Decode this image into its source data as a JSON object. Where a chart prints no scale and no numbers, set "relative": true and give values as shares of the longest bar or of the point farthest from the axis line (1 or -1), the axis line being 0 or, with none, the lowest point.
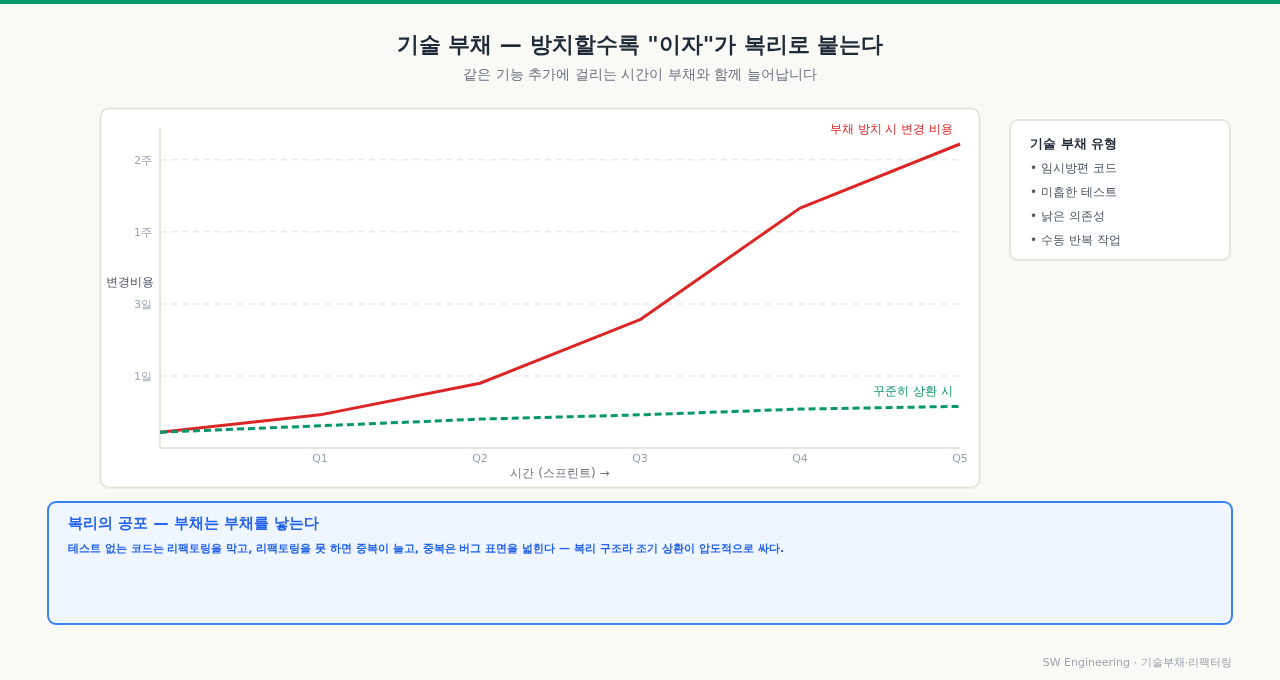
{
  "chart_data": [
    {
      "type": "line",
      "title": "기술 부채 — 방치할수록 \"이자\"가 복리로 붙는다",
      "subtitle": "같은 기능 추가에 걸리는 시간이 부채와 함께 늘어납니다",
      "xlabel": "시간 (스프린트) →",
      "ylabel": "변경비용",
      "categories": [
        null,
        "Q1",
        "Q2",
        "Q3",
        "Q4",
        "Q5"
      ],
      "series": [
        {
          "name": "부채 방치 시 변경 비용",
          "color": "#dc2626",
          "line_style": "solid",
          "values": [
            0.052,
            0.109,
            0.213,
            0.422,
            0.789,
            1
          ]
        },
        {
          "name": "꾸준히 상환 시",
          "color": "#059669",
          "line_style": "dashed",
          "values": [
            0.052,
            0.073,
            0.095,
            0.109,
            0.128,
            0.137
          ]
        }
      ],
      "relative": true,
      "ref_lines": [
        {
          "axis": "y",
          "value": 0.237,
          "label": "1일",
          "line_style": "dashed"
        },
        {
          "axis": "y",
          "value": 0.474,
          "label": "3일",
          "line_style": "dashed"
        },
        {
          "axis": "y",
          "value": 0.711,
          "label": "1주",
          "line_style": "dashed"
        },
        {
          "axis": "y",
          "value": 0.948,
          "label": "2주",
          "line_style": "dashed"
        }
      ],
      "marker": "none",
      "annotations": [
        "복리의 공포 — 부채는 부채를 낳는다",
        "테스트 없는 코드는 리팩토링을 막고, 리팩토링을 못 하면 중복이 늘고, 중복은 버그 표면을 넓힌다 — 복리 구조라 조기 상환이 압도적으로 싸다.",
        "SW Engineering · 기술부채·리팩터링"
      ]
    },
    {
      "type": "other",
      "title": "기술 부채 유형",
      "annotations": [
        "• 임시방편 코드",
        "• 미흡한 테스트",
        "• 낡은 의존성",
        "• 수동 반복 작업"
      ]
    }
  ]
}
